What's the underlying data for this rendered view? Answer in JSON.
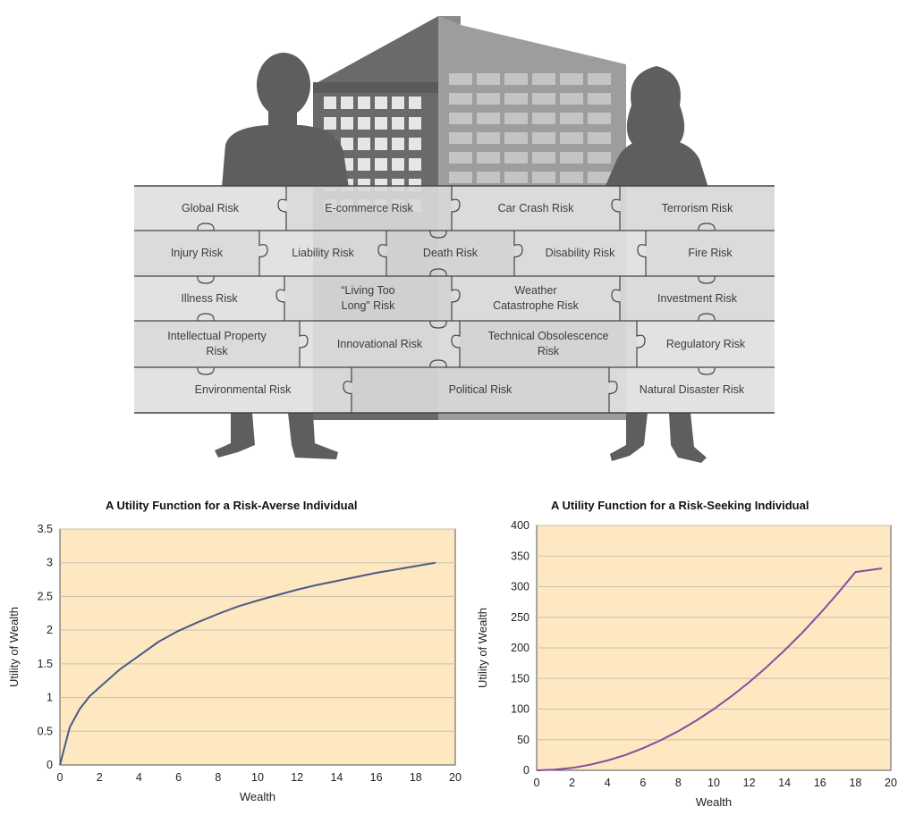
{
  "risk_puzzle": {
    "rows": [
      [
        {
          "label": "Global Risk"
        },
        {
          "label": "E-commerce Risk"
        },
        {
          "label": "Car Crash Risk"
        },
        {
          "label": "Terrorism Risk"
        }
      ],
      [
        {
          "label": "Injury Risk"
        },
        {
          "label": "Liability Risk"
        },
        {
          "label": "Death Risk"
        },
        {
          "label": "Disability Risk"
        },
        {
          "label": "Fire Risk"
        }
      ],
      [
        {
          "label": "Illness Risk"
        },
        {
          "label": "“Living Too\nLong” Risk"
        },
        {
          "label": "Weather\nCatastrophe Risk"
        },
        {
          "label": "Investment Risk"
        }
      ],
      [
        {
          "label": "Intellectual Property\nRisk"
        },
        {
          "label": "Innovational Risk"
        },
        {
          "label": "Technical Obsolescence\nRisk"
        },
        {
          "label": "Regulatory Risk"
        }
      ],
      [
        {
          "label": "Environmental Risk"
        },
        {
          "label": "Political Risk"
        },
        {
          "label": "Natural Disaster Risk"
        }
      ]
    ]
  },
  "chart_data": [
    {
      "type": "line",
      "title": "A Utility Function for a Risk-Averse Individual",
      "xlabel": "Wealth",
      "ylabel": "Utility of Wealth",
      "xlim": [
        0,
        20
      ],
      "ylim": [
        0,
        3.5
      ],
      "xticks": [
        "0",
        "2",
        "4",
        "6",
        "8",
        "10",
        "12",
        "14",
        "16",
        "18",
        "20"
      ],
      "yticks": [
        "0",
        "0.5",
        "1",
        "1.5",
        "2",
        "2.5",
        "3",
        "3.5"
      ],
      "grid": true,
      "background_color": "#fde8c2",
      "series": [
        {
          "color": "#4a5a86",
          "x": [
            0,
            0.5,
            1,
            1.5,
            2,
            3,
            4,
            5,
            6,
            7,
            8,
            9,
            10,
            11,
            12,
            13,
            14,
            15,
            16,
            17,
            18,
            19
          ],
          "y": [
            0,
            0.56,
            0.83,
            1.02,
            1.15,
            1.41,
            1.62,
            1.83,
            1.99,
            2.12,
            2.24,
            2.35,
            2.44,
            2.52,
            2.6,
            2.67,
            2.73,
            2.79,
            2.85,
            2.9,
            2.95,
            3.0
          ]
        }
      ]
    },
    {
      "type": "line",
      "title": "A Utility Function for a Risk-Seeking Individual",
      "xlabel": "Wealth",
      "ylabel": "Utility of Wealth",
      "xlim": [
        0,
        20
      ],
      "ylim": [
        0,
        400
      ],
      "xticks": [
        "0",
        "2",
        "4",
        "6",
        "8",
        "10",
        "12",
        "14",
        "16",
        "18",
        "20"
      ],
      "yticks": [
        "0",
        "50",
        "100",
        "150",
        "200",
        "250",
        "300",
        "350",
        "400"
      ],
      "grid": true,
      "background_color": "#fde8c2",
      "series": [
        {
          "color": "#8a4aa0",
          "x": [
            0,
            1,
            2,
            3,
            4,
            5,
            6,
            7,
            8,
            9,
            10,
            11,
            12,
            13,
            14,
            15,
            16,
            17,
            18,
            19.5
          ],
          "y": [
            0,
            1,
            4,
            9,
            16,
            25,
            36,
            49,
            64,
            81,
            100,
            121,
            144,
            169,
            196,
            225,
            256,
            289,
            324,
            330
          ]
        }
      ]
    }
  ]
}
